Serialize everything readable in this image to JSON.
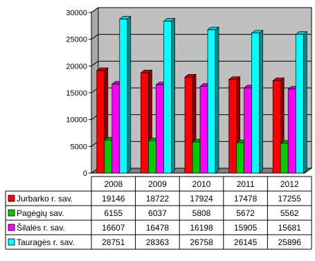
{
  "chart_data": {
    "type": "bar",
    "categories": [
      "2008",
      "2009",
      "2010",
      "2011",
      "2012"
    ],
    "series": [
      {
        "name": "Jurbarko r. sav.",
        "color": "#ff0000",
        "values": [
          19146,
          18722,
          17924,
          17478,
          17255
        ]
      },
      {
        "name": "Pagėgių sav.",
        "color": "#00cc00",
        "values": [
          6155,
          6037,
          5808,
          5672,
          5562
        ]
      },
      {
        "name": "Šilalės r. sav.",
        "color": "#ff00ff",
        "values": [
          16607,
          16478,
          16198,
          15905,
          15681
        ]
      },
      {
        "name": "Tauragės r. sav.",
        "color": "#00ffff",
        "values": [
          28751,
          28363,
          26758,
          26145,
          25896
        ]
      }
    ],
    "ylim": [
      0,
      30000
    ],
    "yticks": [
      0,
      5000,
      10000,
      15000,
      20000,
      25000,
      30000
    ],
    "grid": true,
    "style": "3d-clustered",
    "legend_placement": "data-table-left",
    "colors": {
      "wall": "#c0c0c0",
      "floor": "#808080",
      "gridline": "#000000"
    }
  }
}
